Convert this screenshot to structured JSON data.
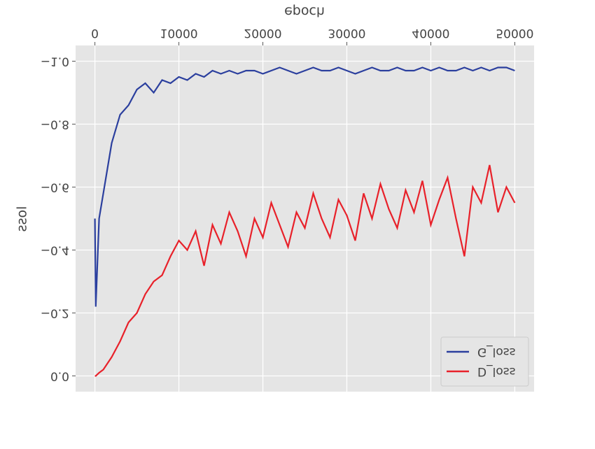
{
  "chart_data": {
    "type": "line",
    "x_label": "epoch",
    "y_label": "loss",
    "x": [
      0,
      100,
      500,
      1000,
      2000,
      3000,
      4000,
      5000,
      6000,
      7000,
      8000,
      9000,
      10000,
      11000,
      12000,
      13000,
      14000,
      15000,
      16000,
      17000,
      18000,
      19000,
      20000,
      21000,
      22000,
      23000,
      24000,
      25000,
      26000,
      27000,
      28000,
      29000,
      30000,
      31000,
      32000,
      33000,
      34000,
      35000,
      36000,
      37000,
      38000,
      39000,
      40000,
      41000,
      42000,
      43000,
      44000,
      45000,
      46000,
      47000,
      48000,
      49000,
      50000
    ],
    "series": [
      {
        "name": "G_loss",
        "color": "#2b3f9e",
        "values": [
          -0.5,
          -0.22,
          -0.5,
          -0.58,
          -0.74,
          -0.83,
          -0.86,
          -0.91,
          -0.93,
          -0.9,
          -0.94,
          -0.93,
          -0.95,
          -0.94,
          -0.96,
          -0.95,
          -0.97,
          -0.96,
          -0.97,
          -0.96,
          -0.97,
          -0.97,
          -0.96,
          -0.97,
          -0.98,
          -0.97,
          -0.96,
          -0.97,
          -0.98,
          -0.97,
          -0.97,
          -0.98,
          -0.97,
          -0.96,
          -0.97,
          -0.98,
          -0.97,
          -0.97,
          -0.98,
          -0.97,
          -0.97,
          -0.98,
          -0.97,
          -0.98,
          -0.97,
          -0.97,
          -0.98,
          -0.97,
          -0.98,
          -0.97,
          -0.98,
          -0.98,
          -0.97
        ]
      },
      {
        "name": "D_loss",
        "color": "#e8212a",
        "values": [
          0.0,
          0.0,
          -0.01,
          -0.02,
          -0.06,
          -0.11,
          -0.17,
          -0.2,
          -0.26,
          -0.3,
          -0.32,
          -0.38,
          -0.43,
          -0.4,
          -0.46,
          -0.35,
          -0.48,
          -0.42,
          -0.52,
          -0.46,
          -0.38,
          -0.5,
          -0.44,
          -0.55,
          -0.48,
          -0.41,
          -0.52,
          -0.47,
          -0.58,
          -0.5,
          -0.44,
          -0.56,
          -0.51,
          -0.43,
          -0.58,
          -0.5,
          -0.61,
          -0.53,
          -0.47,
          -0.59,
          -0.52,
          -0.62,
          -0.48,
          -0.56,
          -0.63,
          -0.5,
          -0.38,
          -0.6,
          -0.55,
          -0.67,
          -0.52,
          -0.6,
          -0.55
        ]
      }
    ],
    "xlim": [
      -2300,
      52300
    ],
    "ylim": [
      -1.05,
      0.05
    ],
    "xticks": [
      0,
      10000,
      20000,
      30000,
      40000,
      50000
    ],
    "yticks": [
      {
        "value": -1.0,
        "label": "−1.0"
      },
      {
        "value": -0.8,
        "label": "−0.8"
      },
      {
        "value": -0.6,
        "label": "−0.6"
      },
      {
        "value": -0.4,
        "label": "−0.4"
      },
      {
        "value": -0.2,
        "label": "−0.2"
      },
      {
        "value": 0.0,
        "label": "0.0"
      }
    ],
    "grid": true,
    "legend": "upper right",
    "flipped_vertically": true
  }
}
